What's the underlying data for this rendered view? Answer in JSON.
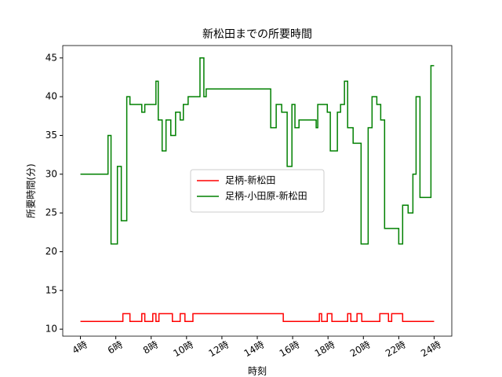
{
  "chart_data": {
    "type": "line",
    "drawstyle": "steps-post",
    "title": "新松田までの所要時間",
    "xlabel": "時刻",
    "ylabel": "所要時間(分)",
    "legend": "center",
    "series": [
      {
        "name": "足柄-新松田",
        "color": "#ff0000",
        "x": [
          4,
          6.4,
          6.8,
          7.47,
          7.64,
          8.09,
          8.27,
          8.44,
          9.2,
          9.64,
          9.91,
          10.36,
          15.47,
          17.51,
          17.64,
          17.96,
          18.22,
          19.11,
          19.29,
          19.64,
          19.91,
          20.93,
          21.42,
          21.6,
          22.22,
          24
        ],
        "values": [
          11,
          12,
          11,
          12,
          11,
          12,
          11,
          12,
          11,
          12,
          11,
          12,
          11,
          12,
          11,
          12,
          11,
          12,
          11,
          12,
          11,
          12,
          11,
          12,
          11,
          11
        ]
      },
      {
        "name": "足柄-小田原-新松田",
        "color": "#008000",
        "x": [
          4,
          5.56,
          5.73,
          6.09,
          6.31,
          6.62,
          6.8,
          7.47,
          7.64,
          8.27,
          8.4,
          8.62,
          8.84,
          9.11,
          9.38,
          9.64,
          9.82,
          10.09,
          10.76,
          10.98,
          11.11,
          14.76,
          15.07,
          15.38,
          15.69,
          15.96,
          16.13,
          16.36,
          17.33,
          17.42,
          17.96,
          18.13,
          18.53,
          18.71,
          18.93,
          19.11,
          19.42,
          19.87,
          20.27,
          20.49,
          20.76,
          20.98,
          21.2,
          22.0,
          22.22,
          22.53,
          22.8,
          22.98,
          23.2,
          23.82,
          24
        ],
        "values": [
          30,
          35,
          21,
          31,
          24,
          40,
          39,
          38,
          39,
          42,
          37,
          33,
          37,
          35,
          38,
          37,
          39,
          40,
          45,
          40,
          41,
          36,
          39,
          38,
          31,
          39,
          36,
          37,
          36,
          39,
          38,
          33,
          38,
          39,
          42,
          36,
          34,
          21,
          36,
          40,
          39,
          37,
          23,
          21,
          26,
          25,
          30,
          40,
          27,
          44,
          44
        ]
      }
    ],
    "xlim": [
      3,
      25
    ],
    "ylim": [
      9.1,
      46.6
    ],
    "xticks": [
      {
        "value": 4,
        "label": "4時"
      },
      {
        "value": 6,
        "label": "6時"
      },
      {
        "value": 8,
        "label": "8時"
      },
      {
        "value": 10,
        "label": "10時"
      },
      {
        "value": 12,
        "label": "12時"
      },
      {
        "value": 14,
        "label": "14時"
      },
      {
        "value": 16,
        "label": "16時"
      },
      {
        "value": 18,
        "label": "18時"
      },
      {
        "value": 20,
        "label": "20時"
      },
      {
        "value": 22,
        "label": "22時"
      },
      {
        "value": 24,
        "label": "24時"
      }
    ],
    "yticks": [
      10,
      15,
      20,
      25,
      30,
      35,
      40,
      45
    ]
  }
}
